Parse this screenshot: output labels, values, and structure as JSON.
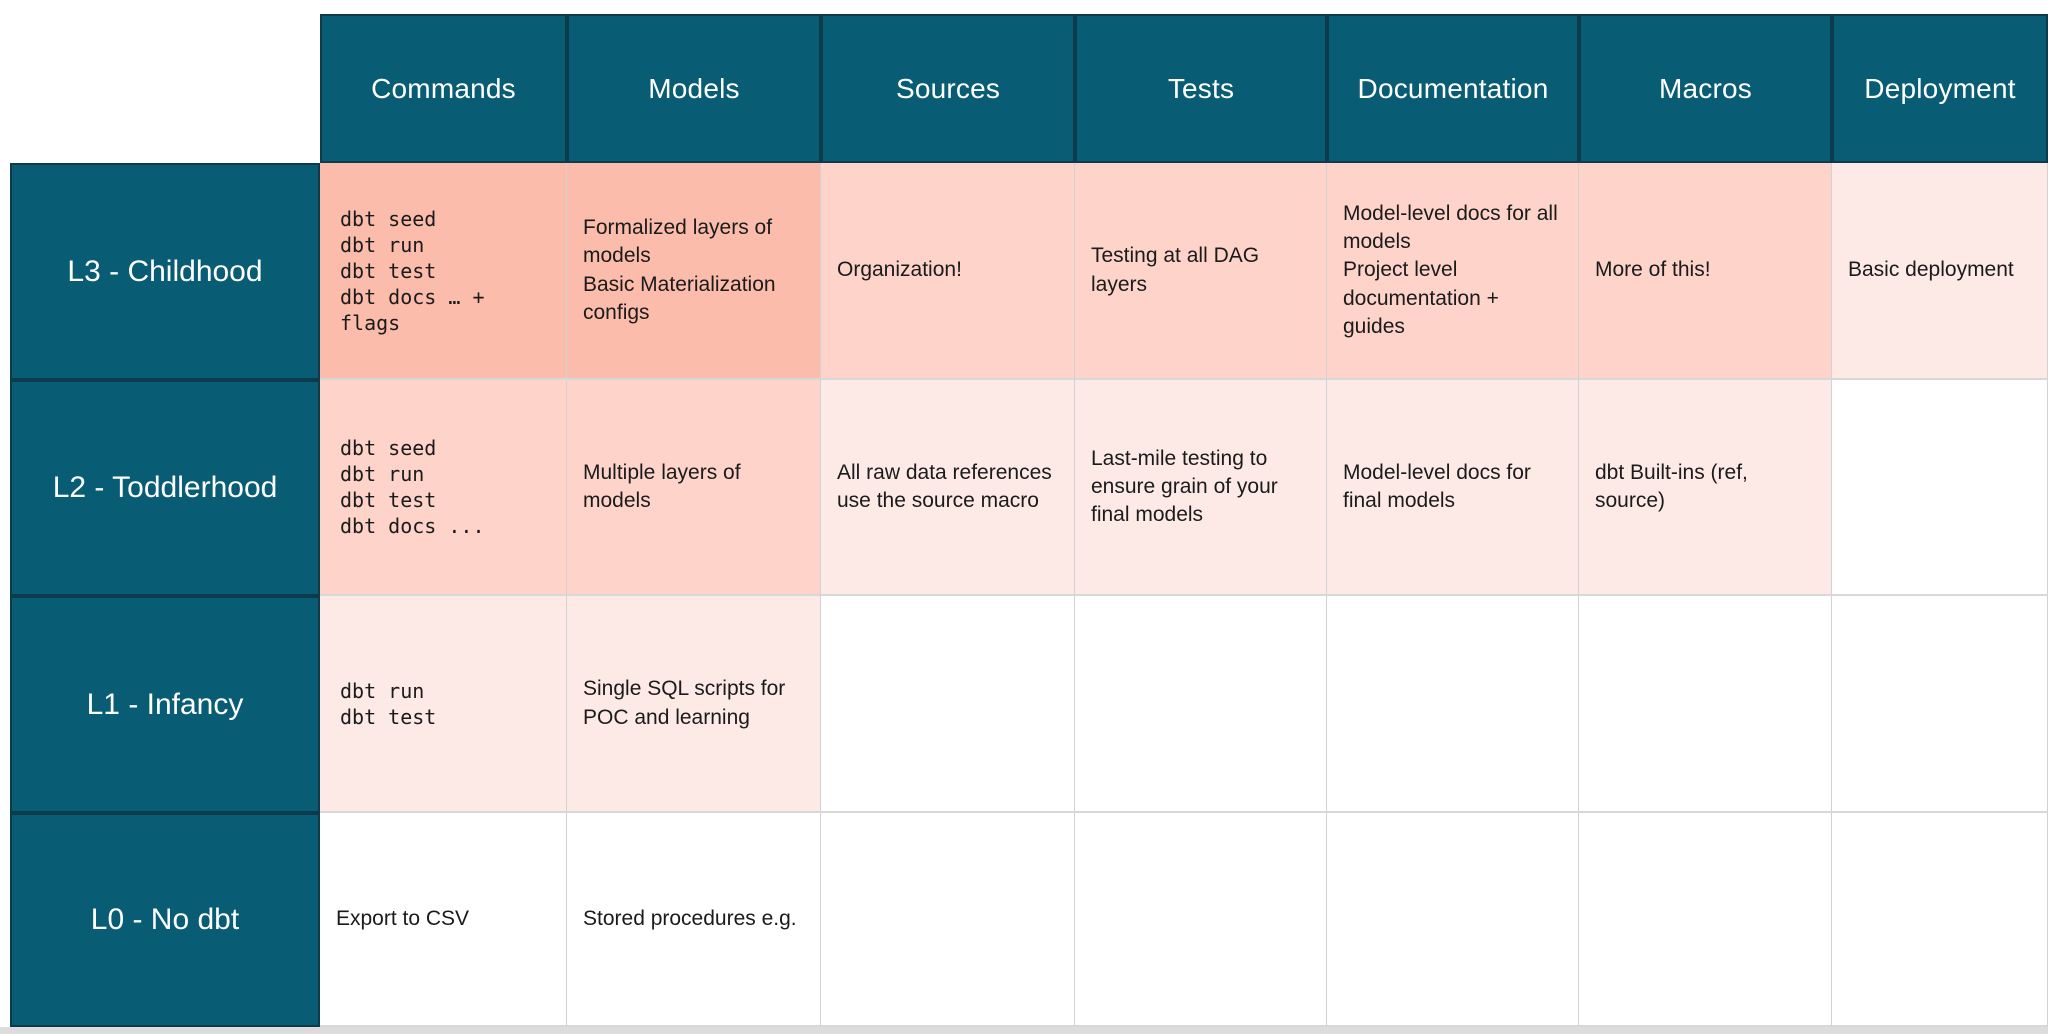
{
  "theme": {
    "header_bg": "#085c74",
    "header_text": "#ffffff",
    "header_border": "#0d3b4d",
    "grid_border": "#d2d2d2",
    "cell_text": "#1b1b1b",
    "bottom_bar_color": "#dcdcdc",
    "level_colors": {
      "strong": "#fbbcab",
      "medium": "#fdd3ca",
      "light": "#fde9e6",
      "none": "#ffffff"
    }
  },
  "table": {
    "columns": [
      "Commands",
      "Models",
      "Sources",
      "Tests",
      "Documentation",
      "Macros",
      "Deployment"
    ],
    "rows": [
      {
        "label": "L3 - Childhood",
        "cells": [
          {
            "text": "dbt seed\ndbt run\ndbt test\ndbt docs … +\nflags",
            "mono": true,
            "tone": "strong"
          },
          {
            "text": "Formalized layers of models\nBasic Materialization configs",
            "mono": false,
            "tone": "strong"
          },
          {
            "text": "Organization!",
            "mono": false,
            "tone": "medium"
          },
          {
            "text": "Testing at all DAG layers",
            "mono": false,
            "tone": "medium"
          },
          {
            "text": "Model-level docs for all models\nProject level documentation + guides",
            "mono": false,
            "tone": "medium"
          },
          {
            "text": "More of this!",
            "mono": false,
            "tone": "medium"
          },
          {
            "text": "Basic deployment",
            "mono": false,
            "tone": "light"
          }
        ]
      },
      {
        "label": "L2 - Toddlerhood",
        "cells": [
          {
            "text": "dbt seed\ndbt run\ndbt test\ndbt docs ...",
            "mono": true,
            "tone": "medium"
          },
          {
            "text": "Multiple layers of models",
            "mono": false,
            "tone": "medium"
          },
          {
            "text": "All raw data references use the source macro",
            "mono": false,
            "tone": "light"
          },
          {
            "text": "Last-mile testing to ensure grain of your final models",
            "mono": false,
            "tone": "light"
          },
          {
            "text": "Model-level docs for final models",
            "mono": false,
            "tone": "light"
          },
          {
            "text": "dbt Built-ins (ref, source)",
            "mono": false,
            "tone": "light"
          },
          {
            "text": "",
            "mono": false,
            "tone": "none"
          }
        ]
      },
      {
        "label": "L1 - Infancy",
        "cells": [
          {
            "text": "dbt run\ndbt test",
            "mono": true,
            "tone": "light"
          },
          {
            "text": "Single SQL scripts for POC and learning",
            "mono": false,
            "tone": "light"
          },
          {
            "text": "",
            "mono": false,
            "tone": "none"
          },
          {
            "text": "",
            "mono": false,
            "tone": "none"
          },
          {
            "text": "",
            "mono": false,
            "tone": "none"
          },
          {
            "text": "",
            "mono": false,
            "tone": "none"
          },
          {
            "text": "",
            "mono": false,
            "tone": "none"
          }
        ]
      },
      {
        "label": "L0 - No dbt",
        "cells": [
          {
            "text": "Export to CSV",
            "mono": false,
            "tone": "none"
          },
          {
            "text": "Stored procedures e.g.",
            "mono": false,
            "tone": "none"
          },
          {
            "text": "",
            "mono": false,
            "tone": "none"
          },
          {
            "text": "",
            "mono": false,
            "tone": "none"
          },
          {
            "text": "",
            "mono": false,
            "tone": "none"
          },
          {
            "text": "",
            "mono": false,
            "tone": "none"
          },
          {
            "text": "",
            "mono": false,
            "tone": "none"
          }
        ]
      }
    ]
  }
}
